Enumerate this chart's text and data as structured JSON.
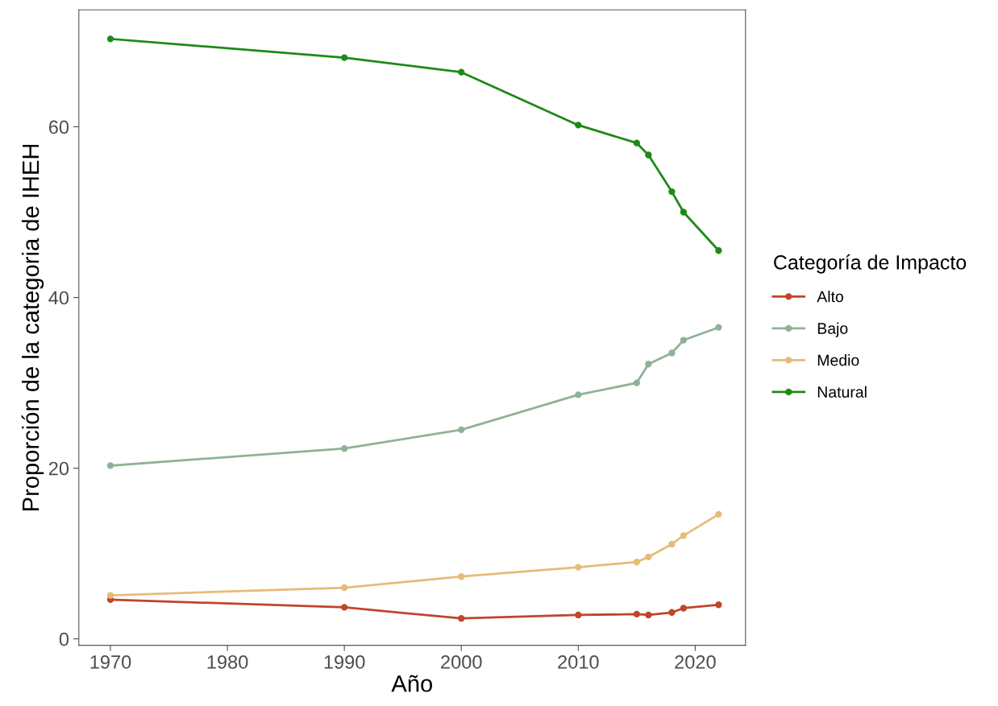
{
  "chart_data": {
    "type": "line",
    "xlabel": "Año",
    "ylabel": "Proporción de la categoria de IHEH",
    "legend_title": "Categoría de Impacto",
    "legend": "right",
    "marker": "circle",
    "line_style": "solid",
    "grid": false,
    "x": [
      1970,
      1990,
      2000,
      2010,
      2015,
      2016,
      2018,
      2019,
      2022
    ],
    "xlim": [
      1967.3,
      2024.3
    ],
    "xticks": [
      1970,
      1980,
      1990,
      2000,
      2010,
      2020
    ],
    "ylim": [
      -0.75,
      73.7
    ],
    "yticks": [
      0,
      20,
      40,
      60
    ],
    "series": [
      {
        "name": "Alto",
        "color": "#c0452c",
        "values": [
          4.6,
          3.7,
          2.4,
          2.8,
          2.9,
          2.8,
          3.1,
          3.6,
          4.0
        ]
      },
      {
        "name": "Bajo",
        "color": "#8fb296",
        "values": [
          20.3,
          22.3,
          24.5,
          28.6,
          30.0,
          32.2,
          33.5,
          35.0,
          36.5
        ]
      },
      {
        "name": "Medio",
        "color": "#e5bc78",
        "values": [
          5.1,
          6.0,
          7.3,
          8.4,
          9.0,
          9.6,
          11.1,
          12.1,
          14.6
        ]
      },
      {
        "name": "Natural",
        "color": "#1e8a16",
        "values": [
          70.3,
          68.1,
          66.4,
          60.2,
          58.1,
          56.7,
          52.4,
          50.0,
          45.5
        ]
      }
    ]
  }
}
